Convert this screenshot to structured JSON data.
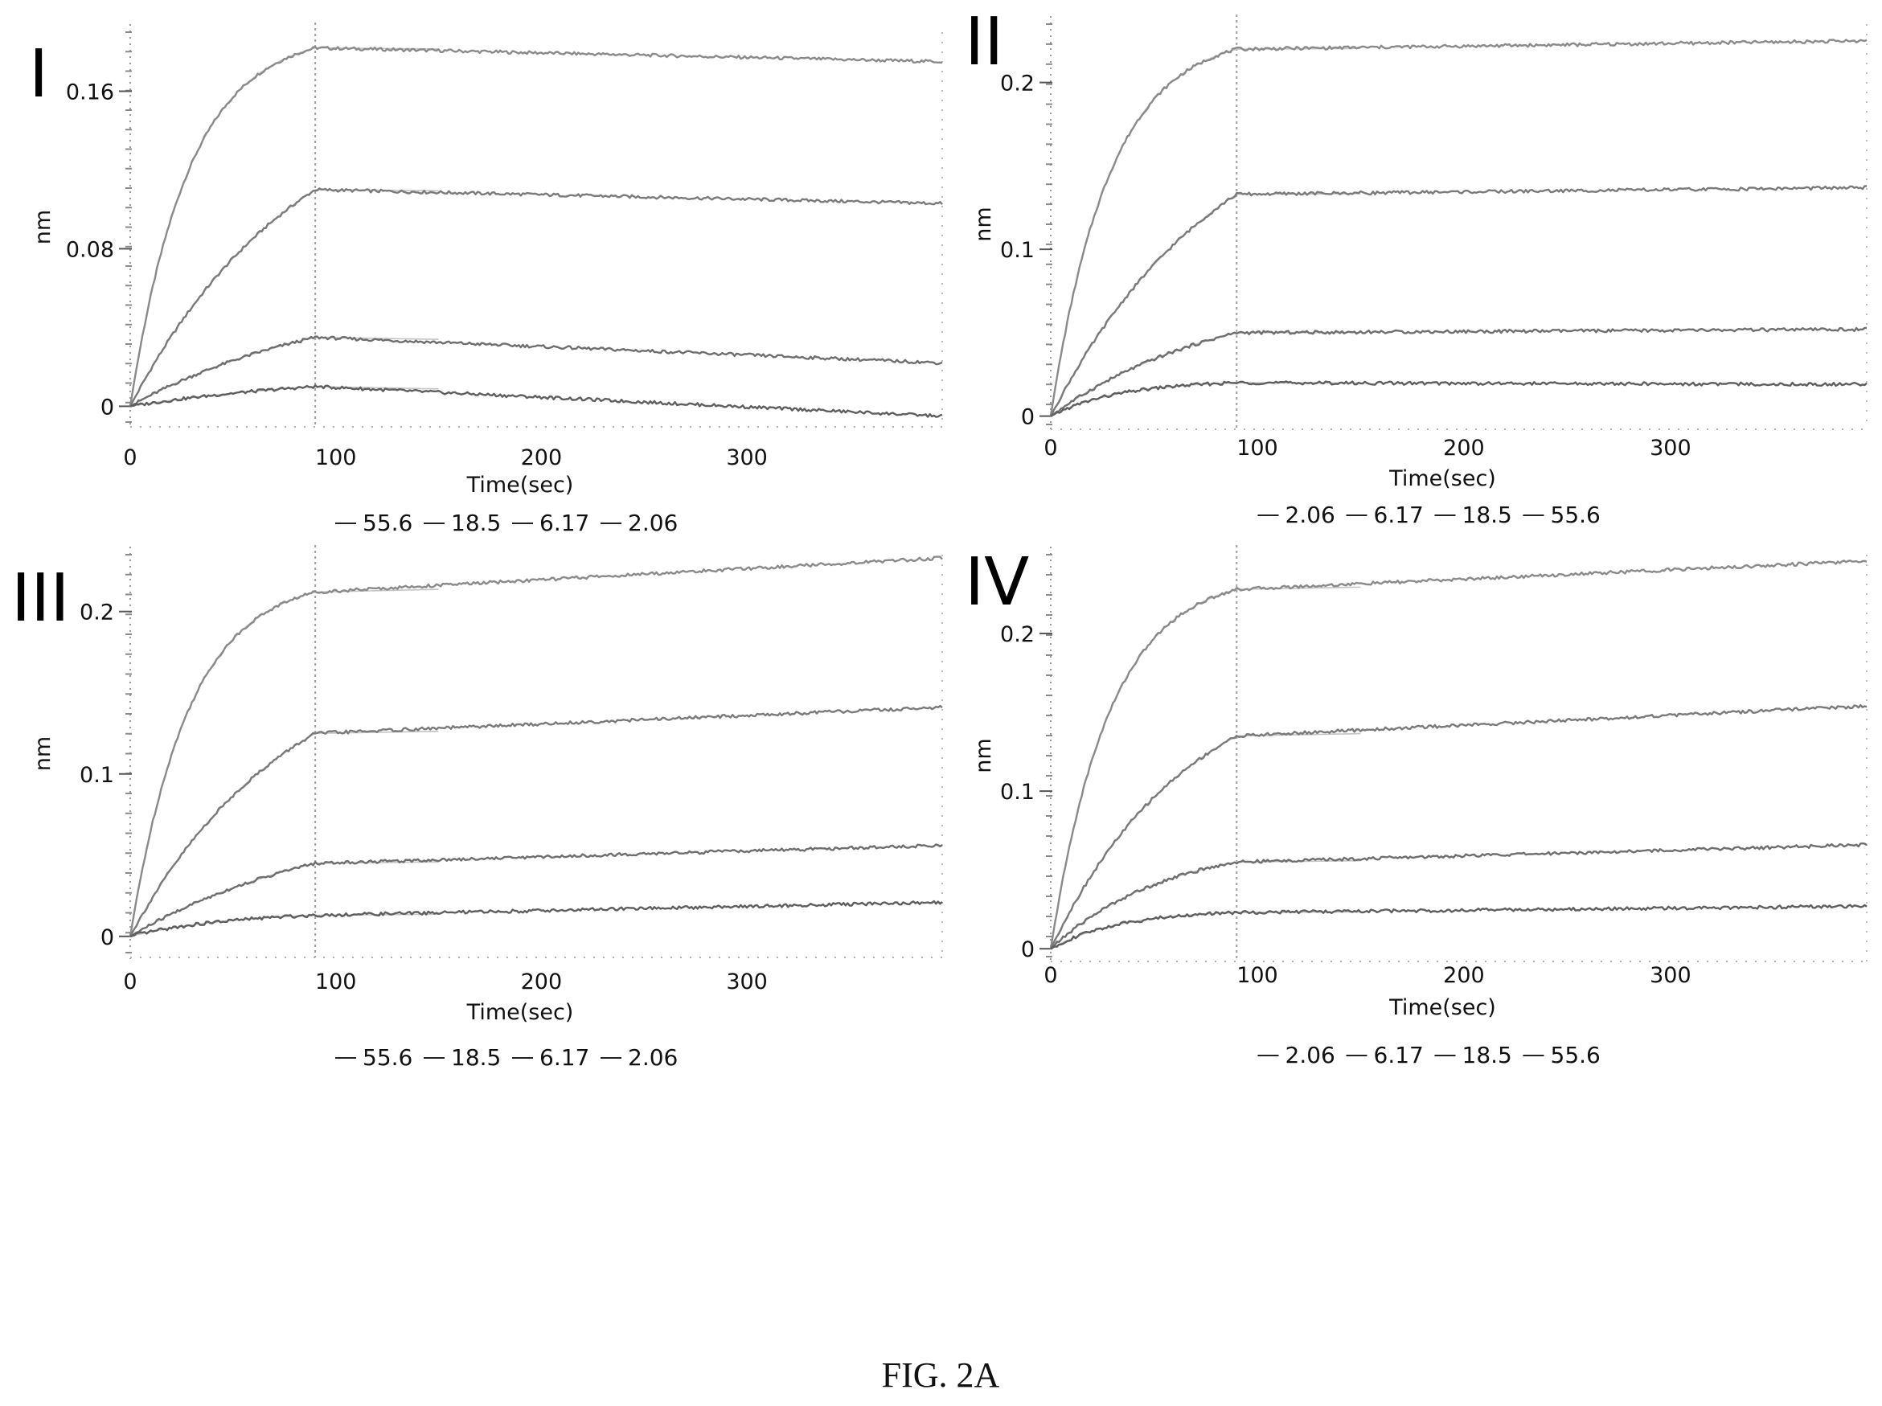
{
  "figure_caption": "FIG. 2A",
  "chart_data": [
    {
      "type": "line",
      "panel_label": "I",
      "xlabel": "Time(sec)",
      "ylabel": "nm",
      "xlim": [
        0,
        395
      ],
      "ylim": [
        -0.008,
        0.19
      ],
      "x_ticks": [
        0,
        100,
        200,
        300
      ],
      "y_ticks": [
        0,
        0.08,
        0.16
      ],
      "y_tick_labels": [
        "0",
        "0.08",
        "0.16"
      ],
      "association_end": 90,
      "grid": false,
      "legend": [
        "55.6",
        "18.5",
        "6.17",
        "2.06"
      ],
      "legend_position": "bottom",
      "series": [
        {
          "name": "55.6",
          "assoc_max": 0.182,
          "assoc_rate": 0.035,
          "dissoc_end": 0.175
        },
        {
          "name": "18.5",
          "assoc_max": 0.11,
          "assoc_rate": 0.012,
          "dissoc_end": 0.103
        },
        {
          "name": "6.17",
          "assoc_max": 0.035,
          "assoc_rate": 0.01,
          "dissoc_end": 0.022
        },
        {
          "name": "2.06",
          "assoc_max": 0.01,
          "assoc_rate": 0.01,
          "dissoc_end": -0.005
        }
      ]
    },
    {
      "type": "line",
      "panel_label": "II",
      "xlabel": "Time(sec)",
      "ylabel": "nm",
      "xlim": [
        0,
        395
      ],
      "ylim": [
        -0.005,
        0.235
      ],
      "x_ticks": [
        0,
        100,
        200,
        300
      ],
      "y_ticks": [
        0,
        0.1,
        0.2
      ],
      "y_tick_labels": [
        "0",
        "0.1",
        "0.2"
      ],
      "association_end": 90,
      "grid": false,
      "legend": [
        "2.06",
        "6.17",
        "18.5",
        "55.6"
      ],
      "legend_position": "bottom",
      "series": [
        {
          "name": "55.6",
          "assoc_max": 0.22,
          "assoc_rate": 0.035,
          "dissoc_end": 0.225
        },
        {
          "name": "18.5",
          "assoc_max": 0.133,
          "assoc_rate": 0.012,
          "dissoc_end": 0.137
        },
        {
          "name": "6.17",
          "assoc_max": 0.05,
          "assoc_rate": 0.012,
          "dissoc_end": 0.052
        },
        {
          "name": "2.06",
          "assoc_max": 0.02,
          "assoc_rate": 0.03,
          "dissoc_end": 0.019
        }
      ]
    },
    {
      "type": "line",
      "panel_label": "III",
      "xlabel": "Time(sec)",
      "ylabel": "nm",
      "xlim": [
        0,
        395
      ],
      "ylim": [
        -0.01,
        0.235
      ],
      "x_ticks": [
        0,
        100,
        200,
        300
      ],
      "y_ticks": [
        0,
        0.1,
        0.2
      ],
      "y_tick_labels": [
        "0",
        "0.1",
        "0.2"
      ],
      "association_end": 90,
      "grid": false,
      "legend": [
        "55.6",
        "18.5",
        "6.17",
        "2.06"
      ],
      "legend_position": "bottom",
      "series": [
        {
          "name": "55.6",
          "assoc_max": 0.212,
          "assoc_rate": 0.035,
          "dissoc_end": 0.233
        },
        {
          "name": "18.5",
          "assoc_max": 0.125,
          "assoc_rate": 0.013,
          "dissoc_end": 0.141
        },
        {
          "name": "6.17",
          "assoc_max": 0.045,
          "assoc_rate": 0.01,
          "dissoc_end": 0.056
        },
        {
          "name": "2.06",
          "assoc_max": 0.013,
          "assoc_rate": 0.02,
          "dissoc_end": 0.021
        }
      ]
    },
    {
      "type": "line",
      "panel_label": "IV",
      "xlabel": "Time(sec)",
      "ylabel": "nm",
      "xlim": [
        0,
        395
      ],
      "ylim": [
        -0.005,
        0.25
      ],
      "x_ticks": [
        0,
        100,
        200,
        300
      ],
      "y_ticks": [
        0,
        0.1,
        0.2
      ],
      "y_tick_labels": [
        "0",
        "0.1",
        "0.2"
      ],
      "association_end": 90,
      "grid": false,
      "legend": [
        "2.06",
        "6.17",
        "18.5",
        "55.6"
      ],
      "legend_position": "bottom",
      "series": [
        {
          "name": "55.6",
          "assoc_max": 0.228,
          "assoc_rate": 0.035,
          "dissoc_end": 0.246
        },
        {
          "name": "18.5",
          "assoc_max": 0.135,
          "assoc_rate": 0.015,
          "dissoc_end": 0.154
        },
        {
          "name": "6.17",
          "assoc_max": 0.055,
          "assoc_rate": 0.018,
          "dissoc_end": 0.066
        },
        {
          "name": "2.06",
          "assoc_max": 0.023,
          "assoc_rate": 0.03,
          "dissoc_end": 0.027
        }
      ]
    }
  ]
}
